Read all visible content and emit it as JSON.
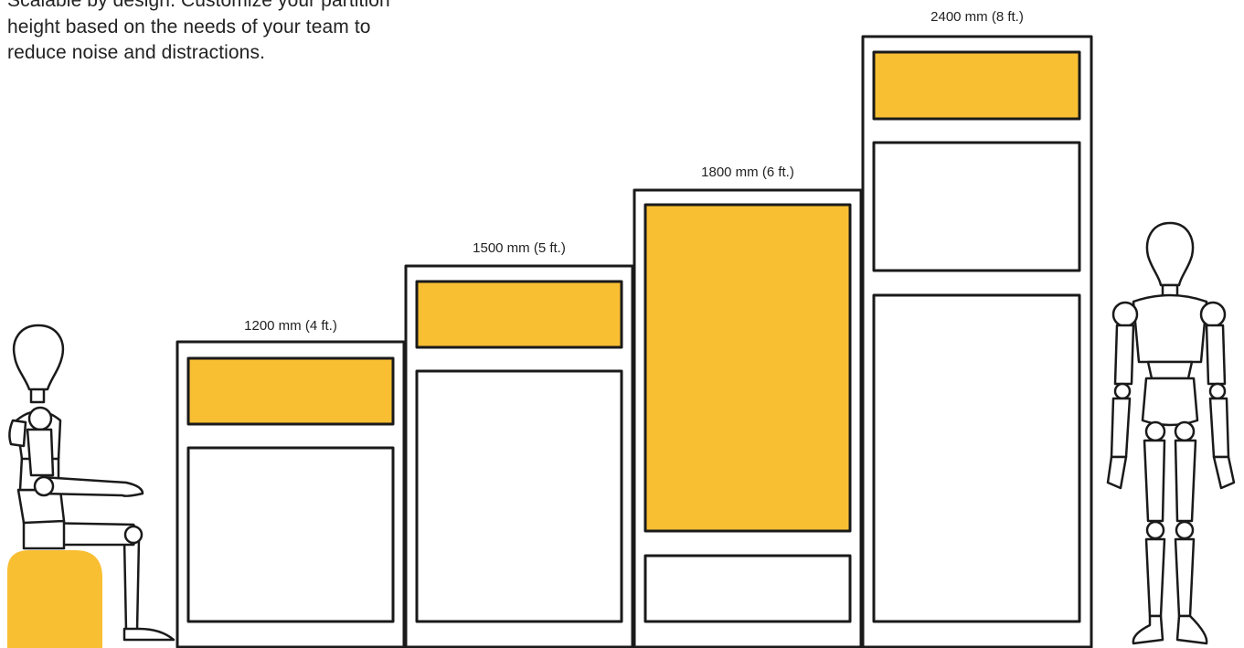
{
  "intro_text": "Scalable by design. Customize your partition height based on the needs of your team to reduce noise and distractions.",
  "colors": {
    "accent": "#F9BF33",
    "outline": "#1a1a1a",
    "panel_fill": "#ffffff"
  },
  "partitions": [
    {
      "label": "1200 mm (4 ft.)",
      "height_mm": 1200
    },
    {
      "label": "1500 mm (5 ft.)",
      "height_mm": 1500
    },
    {
      "label": "1800 mm (6 ft.)",
      "height_mm": 1800
    },
    {
      "label": "2400 mm (8 ft.)",
      "height_mm": 2400
    }
  ],
  "figures": {
    "seated": "seated-mannequin",
    "standing": "standing-mannequin"
  }
}
